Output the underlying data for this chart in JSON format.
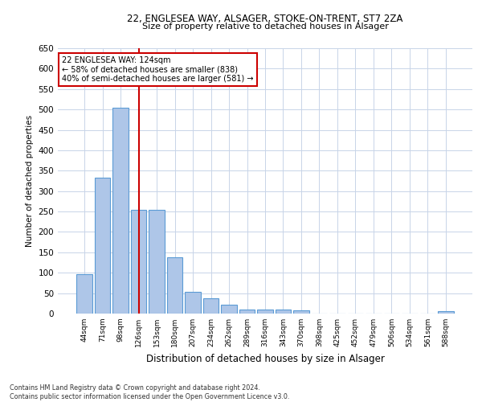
{
  "title1": "22, ENGLESEA WAY, ALSAGER, STOKE-ON-TRENT, ST7 2ZA",
  "title2": "Size of property relative to detached houses in Alsager",
  "xlabel": "Distribution of detached houses by size in Alsager",
  "ylabel": "Number of detached properties",
  "bin_labels": [
    "44sqm",
    "71sqm",
    "98sqm",
    "126sqm",
    "153sqm",
    "180sqm",
    "207sqm",
    "234sqm",
    "262sqm",
    "289sqm",
    "316sqm",
    "343sqm",
    "370sqm",
    "398sqm",
    "425sqm",
    "452sqm",
    "479sqm",
    "506sqm",
    "534sqm",
    "561sqm",
    "588sqm"
  ],
  "bar_heights": [
    97,
    333,
    504,
    255,
    255,
    138,
    53,
    37,
    21,
    10,
    10,
    10,
    7,
    0,
    0,
    0,
    0,
    0,
    0,
    0,
    5
  ],
  "bar_color": "#aec6e8",
  "bar_edge_color": "#5b9bd5",
  "vline_x_index": 3,
  "vline_color": "#cc0000",
  "annotation_text": "22 ENGLESEA WAY: 124sqm\n← 58% of detached houses are smaller (838)\n40% of semi-detached houses are larger (581) →",
  "annotation_box_color": "white",
  "annotation_box_edge": "#cc0000",
  "ylim": [
    0,
    650
  ],
  "yticks": [
    0,
    50,
    100,
    150,
    200,
    250,
    300,
    350,
    400,
    450,
    500,
    550,
    600,
    650
  ],
  "footnote": "Contains HM Land Registry data © Crown copyright and database right 2024.\nContains public sector information licensed under the Open Government Licence v3.0.",
  "bg_color": "#ffffff",
  "grid_color": "#c8d4e8"
}
